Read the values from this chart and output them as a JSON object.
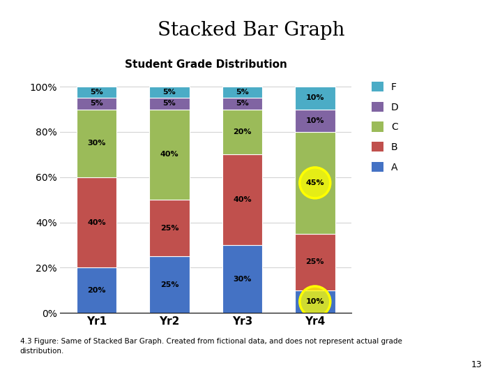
{
  "title_main": "Stacked Bar Graph",
  "title_chart": "Student Grade Distribution",
  "categories": [
    "Yr1",
    "Yr2",
    "Yr3",
    "Yr4"
  ],
  "grades": [
    "A",
    "B",
    "C",
    "D",
    "F"
  ],
  "values": {
    "A": [
      20,
      25,
      30,
      10
    ],
    "B": [
      40,
      25,
      40,
      25
    ],
    "C": [
      30,
      40,
      20,
      45
    ],
    "D": [
      5,
      5,
      5,
      10
    ],
    "F": [
      5,
      5,
      5,
      10
    ]
  },
  "colors": {
    "A": "#4472C4",
    "B": "#C0504D",
    "C": "#9BBB59",
    "D": "#8064A2",
    "F": "#4BACC6"
  },
  "circle_ann": [
    {
      "bar_idx": 3,
      "y_data": 5,
      "text": "10%"
    },
    {
      "bar_idx": 3,
      "y_data": 57.5,
      "text": "45%"
    }
  ],
  "footnote": "4.3 Figure: Same of Stacked Bar Graph. Created from fictional data, and does not represent actual grade\ndistribution.",
  "page_number": "13",
  "background_color": "#FFFFFF"
}
